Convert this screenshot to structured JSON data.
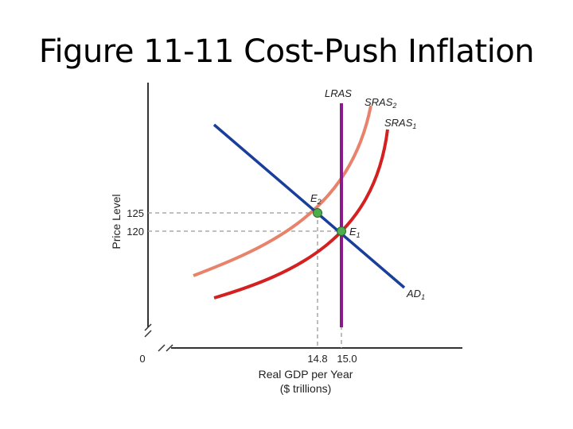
{
  "slide": {
    "title": "Figure 11-11  Cost-Push Inflation"
  },
  "chart_data": {
    "type": "line",
    "title": "Figure 11-11  Cost-Push Inflation",
    "xlabel_line1": "Real GDP per Year",
    "xlabel_line2": "($ trillions)",
    "ylabel": "Price Level",
    "origin_label": "0",
    "axis_breaks": true,
    "grid": false,
    "x_ticks": [
      {
        "value": 14.8,
        "label": "14.8"
      },
      {
        "value": 15.0,
        "label": "15.0"
      }
    ],
    "y_ticks": [
      {
        "value": 125,
        "label": "125"
      },
      {
        "value": 120,
        "label": "120"
      }
    ],
    "series": [
      {
        "name": "LRAS",
        "label_main": "LRAS",
        "label_sub": "",
        "color": "#8b1a8b",
        "kind": "vertical",
        "x": 15.0
      },
      {
        "name": "SRAS2",
        "label_main": "SRAS",
        "label_sub": "2",
        "color": "#e8826a",
        "kind": "curve"
      },
      {
        "name": "SRAS1",
        "label_main": "SRAS",
        "label_sub": "1",
        "color": "#d42020",
        "kind": "curve"
      },
      {
        "name": "AD1",
        "label_main": "AD",
        "label_sub": "1",
        "color": "#1a3f9a",
        "kind": "line"
      }
    ],
    "points": [
      {
        "name": "E2",
        "label_main": "E",
        "label_sub": "2",
        "x": 14.8,
        "y": 125,
        "color": "#4cae4c"
      },
      {
        "name": "E1",
        "label_main": "E",
        "label_sub": "1",
        "x": 15.0,
        "y": 120,
        "color": "#4cae4c"
      }
    ]
  }
}
